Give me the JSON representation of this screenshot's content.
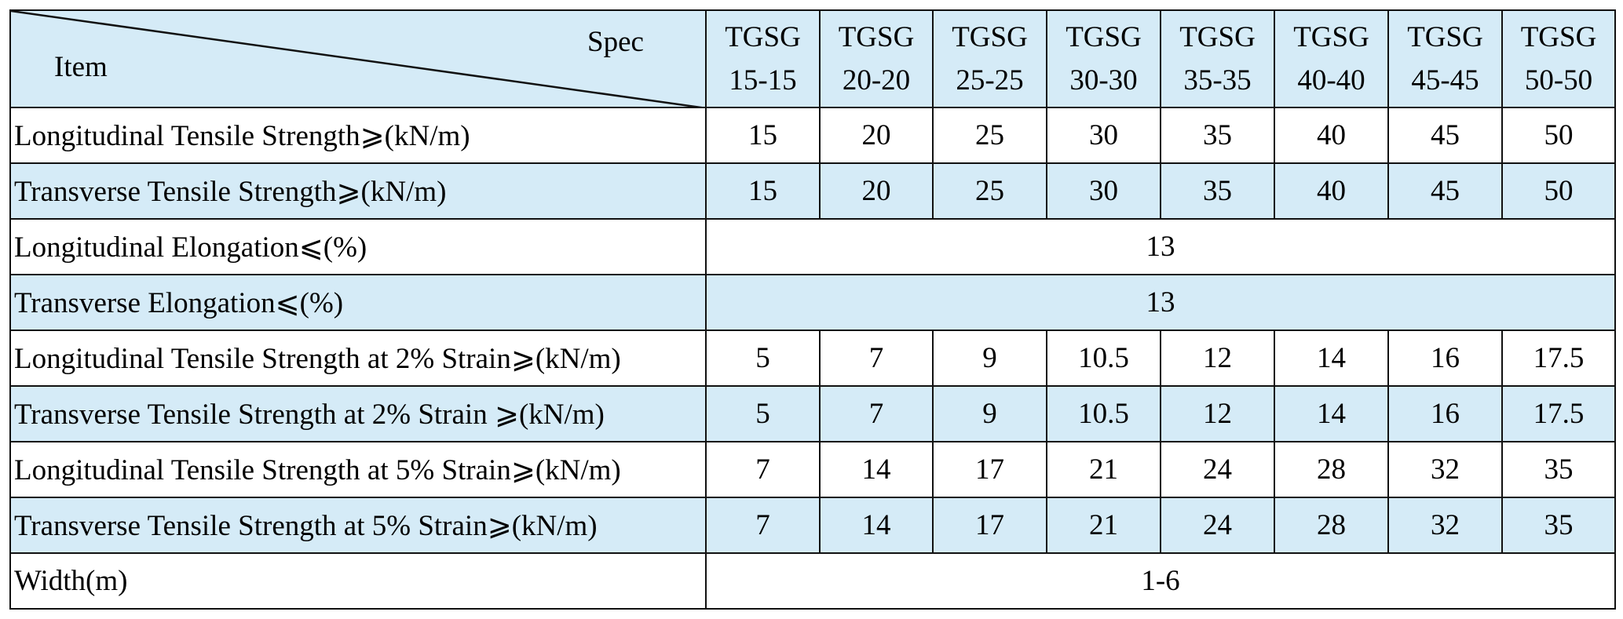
{
  "corner": {
    "item": "Item",
    "spec": "Spec"
  },
  "specs": [
    [
      "TGSG",
      "15-15"
    ],
    [
      "TGSG",
      "20-20"
    ],
    [
      "TGSG",
      "25-25"
    ],
    [
      "TGSG",
      "30-30"
    ],
    [
      "TGSG",
      "35-35"
    ],
    [
      "TGSG",
      "40-40"
    ],
    [
      "TGSG",
      "45-45"
    ],
    [
      "TGSG",
      "50-50"
    ]
  ],
  "rows": [
    {
      "label": "Longitudinal Tensile Strength⩾(kN/m)",
      "values": [
        "15",
        "20",
        "25",
        "30",
        "35",
        "40",
        "45",
        "50"
      ],
      "shaded": false
    },
    {
      "label": "Transverse Tensile Strength⩾(kN/m)",
      "values": [
        "15",
        "20",
        "25",
        "30",
        "35",
        "40",
        "45",
        "50"
      ],
      "shaded": true
    },
    {
      "label": "Longitudinal Elongation⩽(%)",
      "values": [
        "13"
      ],
      "shaded": false
    },
    {
      "label": "Transverse Elongation⩽(%)",
      "values": [
        "13"
      ],
      "shaded": true
    },
    {
      "label": "Longitudinal Tensile Strength at 2% Strain⩾(kN/m)",
      "values": [
        "5",
        "7",
        "9",
        "10.5",
        "12",
        "14",
        "16",
        "17.5"
      ],
      "shaded": false
    },
    {
      "label": "Transverse Tensile Strength at 2% Strain  ⩾(kN/m)",
      "values": [
        "5",
        "7",
        "9",
        "10.5",
        "12",
        "14",
        "16",
        "17.5"
      ],
      "shaded": true
    },
    {
      "label": "Longitudinal Tensile Strength at 5% Strain⩾(kN/m)",
      "values": [
        "7",
        "14",
        "17",
        "21",
        "24",
        "28",
        "32",
        "35"
      ],
      "shaded": false
    },
    {
      "label": "Transverse Tensile Strength at 5% Strain⩾(kN/m)",
      "values": [
        "7",
        "14",
        "17",
        "21",
        "24",
        "28",
        "32",
        "35"
      ],
      "shaded": true
    },
    {
      "label": "Width(m)",
      "values": [
        "1-6"
      ],
      "shaded": false
    }
  ]
}
